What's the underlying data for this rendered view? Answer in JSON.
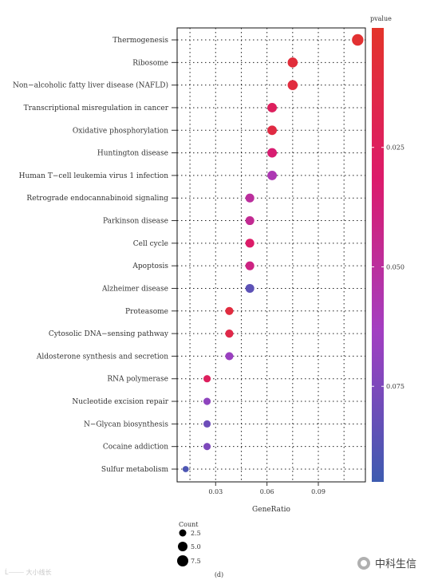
{
  "chart_data": {
    "type": "scatter",
    "xlabel": "GeneRatio",
    "x_ticks": [
      0.03,
      0.06,
      0.09
    ],
    "x_tick_labels": [
      "0.03",
      "0.06",
      "0.09"
    ],
    "xlim": [
      0.0075,
      0.1175
    ],
    "grid": true,
    "categories": [
      "Thermogenesis",
      "Ribosome",
      "Non−alcoholic fatty liver disease (NAFLD)",
      "Transcriptional misregulation in cancer",
      "Oxidative phosphorylation",
      "Huntington disease",
      "Human T−cell leukemia virus 1 infection",
      "Retrograde endocannabinoid signaling",
      "Parkinson disease",
      "Cell cycle",
      "Apoptosis",
      "Alzheimer disease",
      "Proteasome",
      "Cytosolic DNA−sensing pathway",
      "Aldosterone synthesis and secretion",
      "RNA polymerase",
      "Nucleotide excision repair",
      "N−Glycan biosynthesis",
      "Cocaine addiction",
      "Sulfur metabolism"
    ],
    "points": [
      {
        "term": "Thermogenesis",
        "x": 0.113,
        "count": 9,
        "pvalue": 0.004
      },
      {
        "term": "Ribosome",
        "x": 0.075,
        "count": 6,
        "pvalue": 0.008
      },
      {
        "term": "Non−alcoholic fatty liver disease (NAFLD)",
        "x": 0.075,
        "count": 6,
        "pvalue": 0.01
      },
      {
        "term": "Transcriptional misregulation in cancer",
        "x": 0.063,
        "count": 5,
        "pvalue": 0.025
      },
      {
        "term": "Oxidative phosphorylation",
        "x": 0.063,
        "count": 5,
        "pvalue": 0.012
      },
      {
        "term": "Huntington disease",
        "x": 0.063,
        "count": 5,
        "pvalue": 0.034
      },
      {
        "term": "Human T−cell leukemia virus 1 infection",
        "x": 0.063,
        "count": 5,
        "pvalue": 0.058
      },
      {
        "term": "Retrograde endocannabinoid signaling",
        "x": 0.05,
        "count": 4,
        "pvalue": 0.05
      },
      {
        "term": "Parkinson disease",
        "x": 0.05,
        "count": 4,
        "pvalue": 0.046
      },
      {
        "term": "Cell cycle",
        "x": 0.05,
        "count": 4,
        "pvalue": 0.03
      },
      {
        "term": "Apoptosis",
        "x": 0.05,
        "count": 4,
        "pvalue": 0.04
      },
      {
        "term": "Alzheimer disease",
        "x": 0.05,
        "count": 4,
        "pvalue": 0.085
      },
      {
        "term": "Proteasome",
        "x": 0.038,
        "count": 3,
        "pvalue": 0.01
      },
      {
        "term": "Cytosolic DNA−sensing pathway",
        "x": 0.038,
        "count": 3,
        "pvalue": 0.015
      },
      {
        "term": "Aldosterone synthesis and secretion",
        "x": 0.038,
        "count": 3,
        "pvalue": 0.066
      },
      {
        "term": "RNA polymerase",
        "x": 0.025,
        "count": 2,
        "pvalue": 0.025
      },
      {
        "term": "Nucleotide excision repair",
        "x": 0.025,
        "count": 2,
        "pvalue": 0.07
      },
      {
        "term": "N−Glycan biosynthesis",
        "x": 0.025,
        "count": 2,
        "pvalue": 0.08
      },
      {
        "term": "Cocaine addiction",
        "x": 0.025,
        "count": 2,
        "pvalue": 0.075
      },
      {
        "term": "Sulfur metabolism",
        "x": 0.0125,
        "count": 1,
        "pvalue": 0.09
      }
    ],
    "colorbar": {
      "title": "pvalue",
      "range": [
        0.0,
        0.095
      ],
      "ticks": [
        0.025,
        0.05,
        0.075
      ],
      "tick_labels": [
        "0.025",
        "0.050",
        "0.075"
      ],
      "colors": [
        "#e3342a",
        "#dc1a6b",
        "#a33ec2",
        "#3d5bb0"
      ]
    },
    "size_legend": {
      "title": "Count",
      "values": [
        2.5,
        5.0,
        7.5
      ],
      "labels": [
        "2.5",
        "5.0",
        "7.5"
      ]
    }
  },
  "caption": "(d)",
  "watermark_left": "Ĺ️⸻ 大小线长",
  "watermark_right": "中科生信"
}
